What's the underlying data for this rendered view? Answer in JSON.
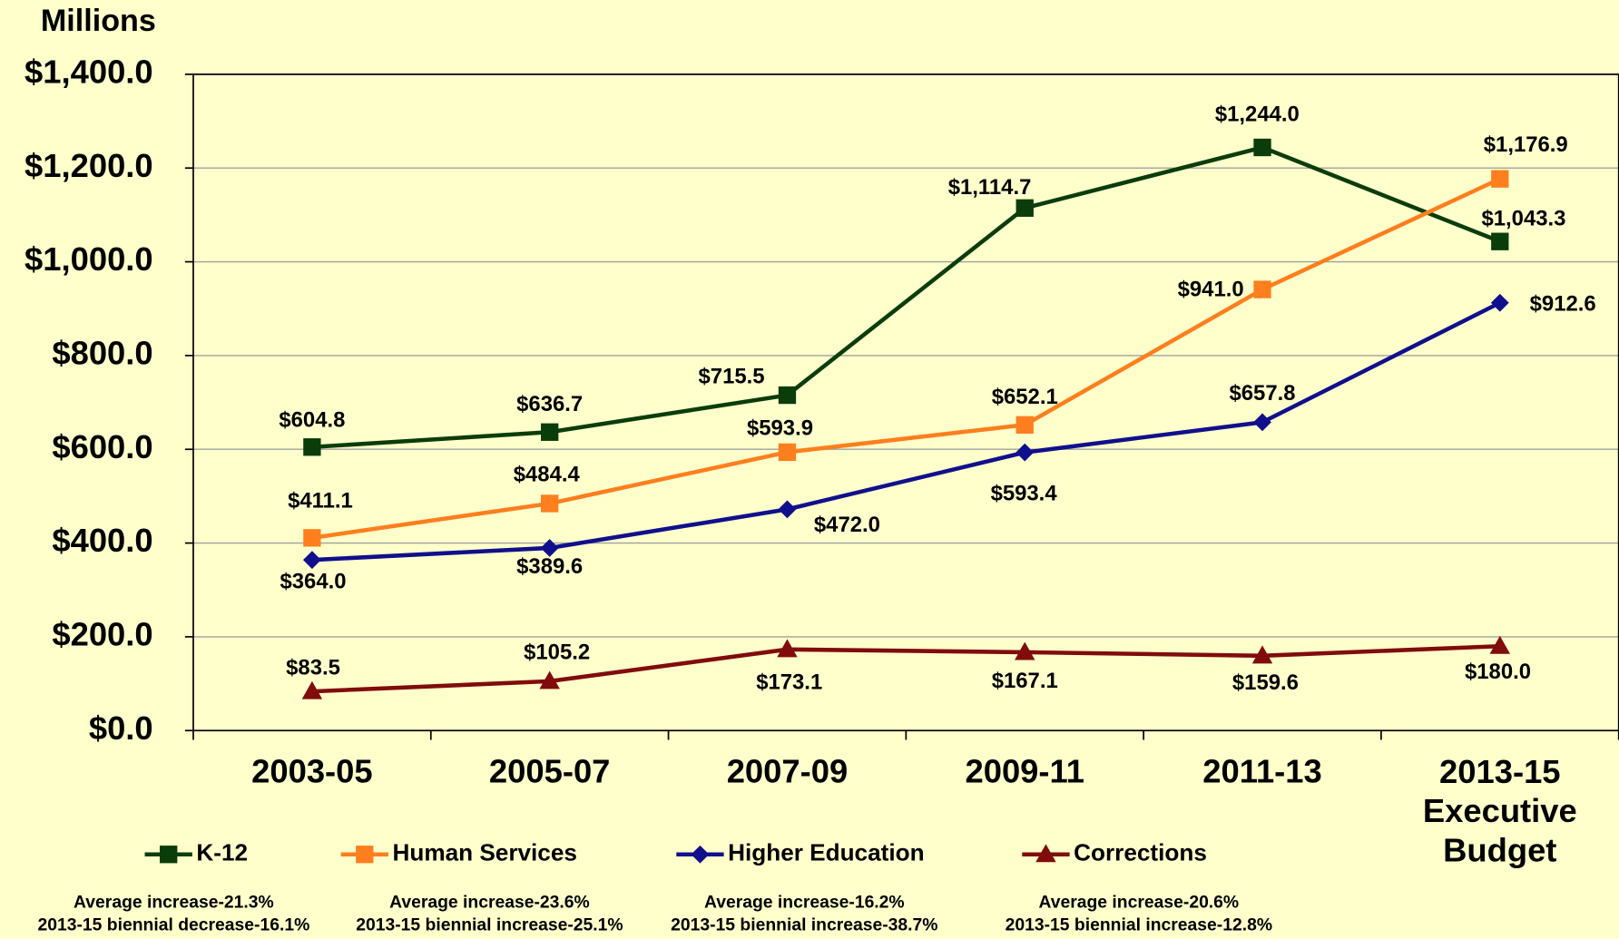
{
  "chart_data": {
    "type": "line",
    "ylabel": "Millions",
    "categories": [
      "2003-05",
      "2005-07",
      "2007-09",
      "2009-11",
      "2011-13",
      "2013-15 Executive Budget"
    ],
    "ylim": [
      0,
      1400
    ],
    "yticks": [
      {
        "value": 0,
        "label": "$0.0"
      },
      {
        "value": 200,
        "label": "$200.0"
      },
      {
        "value": 400,
        "label": "$400.0"
      },
      {
        "value": 600,
        "label": "$600.0"
      },
      {
        "value": 800,
        "label": "$800.0"
      },
      {
        "value": 1000,
        "label": "$1,000.0"
      },
      {
        "value": 1200,
        "label": "$1,200.0"
      },
      {
        "value": 1400,
        "label": "$1,400.0"
      }
    ],
    "grid": true,
    "series": [
      {
        "name": "K-12",
        "color": "#0b3d0b",
        "marker": "square",
        "values": [
          604.8,
          636.7,
          715.5,
          1114.7,
          1244.0,
          1043.3
        ],
        "value_labels": [
          "$604.8",
          "$636.7",
          "$715.5",
          "$1,114.7",
          "$1,244.0",
          "$1,043.3"
        ]
      },
      {
        "name": "Human Services",
        "color": "#ff7f1e",
        "marker": "square",
        "values": [
          411.1,
          484.4,
          593.9,
          652.1,
          941.0,
          1176.9
        ],
        "value_labels": [
          "$411.1",
          "$484.4",
          "$593.9",
          "$652.1",
          "$941.0",
          "$1,176.9"
        ]
      },
      {
        "name": "Higher Education",
        "color": "#10108c",
        "marker": "diamond",
        "values": [
          364.0,
          389.6,
          472.0,
          593.4,
          657.8,
          912.6
        ],
        "value_labels": [
          "$364.0",
          "$389.6",
          "$472.0",
          "$593.4",
          "$657.8",
          "$912.6"
        ]
      },
      {
        "name": "Corrections",
        "color": "#800c0c",
        "marker": "triangle",
        "values": [
          83.5,
          105.2,
          173.1,
          167.1,
          159.6,
          180.0
        ],
        "value_labels": [
          "$83.5",
          "$105.2",
          "$173.1",
          "$167.1",
          "$159.6",
          "$180.0"
        ]
      }
    ],
    "annotations": [
      [
        "Average increase-21.3%",
        "2013-15 biennial decrease-16.1%"
      ],
      [
        "Average increase-23.6%",
        "2013-15 biennial increase-25.1%"
      ],
      [
        "Average increase-16.2%",
        "2013-15 biennial increase-38.7%"
      ],
      [
        "Average increase-20.6%",
        "2013-15 biennial increase-12.8%"
      ]
    ]
  }
}
